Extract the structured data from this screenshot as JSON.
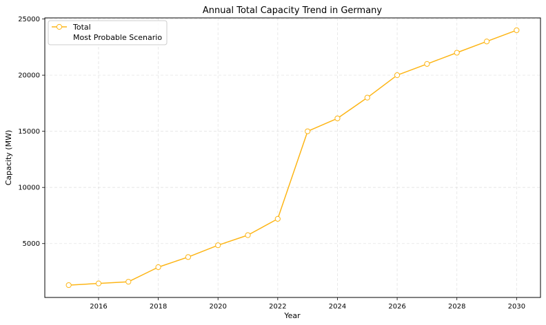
{
  "chart_data": {
    "type": "line",
    "title": "Annual Total Capacity Trend in Germany",
    "xlabel": "Year",
    "ylabel": "Capacity (MW)",
    "xlim": [
      2014.2,
      2030.8
    ],
    "ylim": [
      200,
      25100
    ],
    "x_ticks": [
      2016,
      2018,
      2020,
      2022,
      2024,
      2026,
      2028,
      2030
    ],
    "y_ticks": [
      5000,
      10000,
      15000,
      20000,
      25000
    ],
    "grid": true,
    "legend_position": "top-left",
    "legend": [
      "Total",
      "Most Probable Scenario"
    ],
    "series": [
      {
        "name": "Total",
        "color": "#FDB515",
        "marker": "circle-open",
        "x": [
          2015,
          2016,
          2017,
          2018,
          2019,
          2020,
          2021,
          2022,
          2023,
          2024,
          2025,
          2026,
          2027,
          2028,
          2029,
          2030
        ],
        "y": [
          1300,
          1450,
          1600,
          2900,
          3800,
          4850,
          5750,
          7200,
          15000,
          16150,
          18000,
          20000,
          21000,
          22000,
          23000,
          24000
        ]
      }
    ]
  }
}
